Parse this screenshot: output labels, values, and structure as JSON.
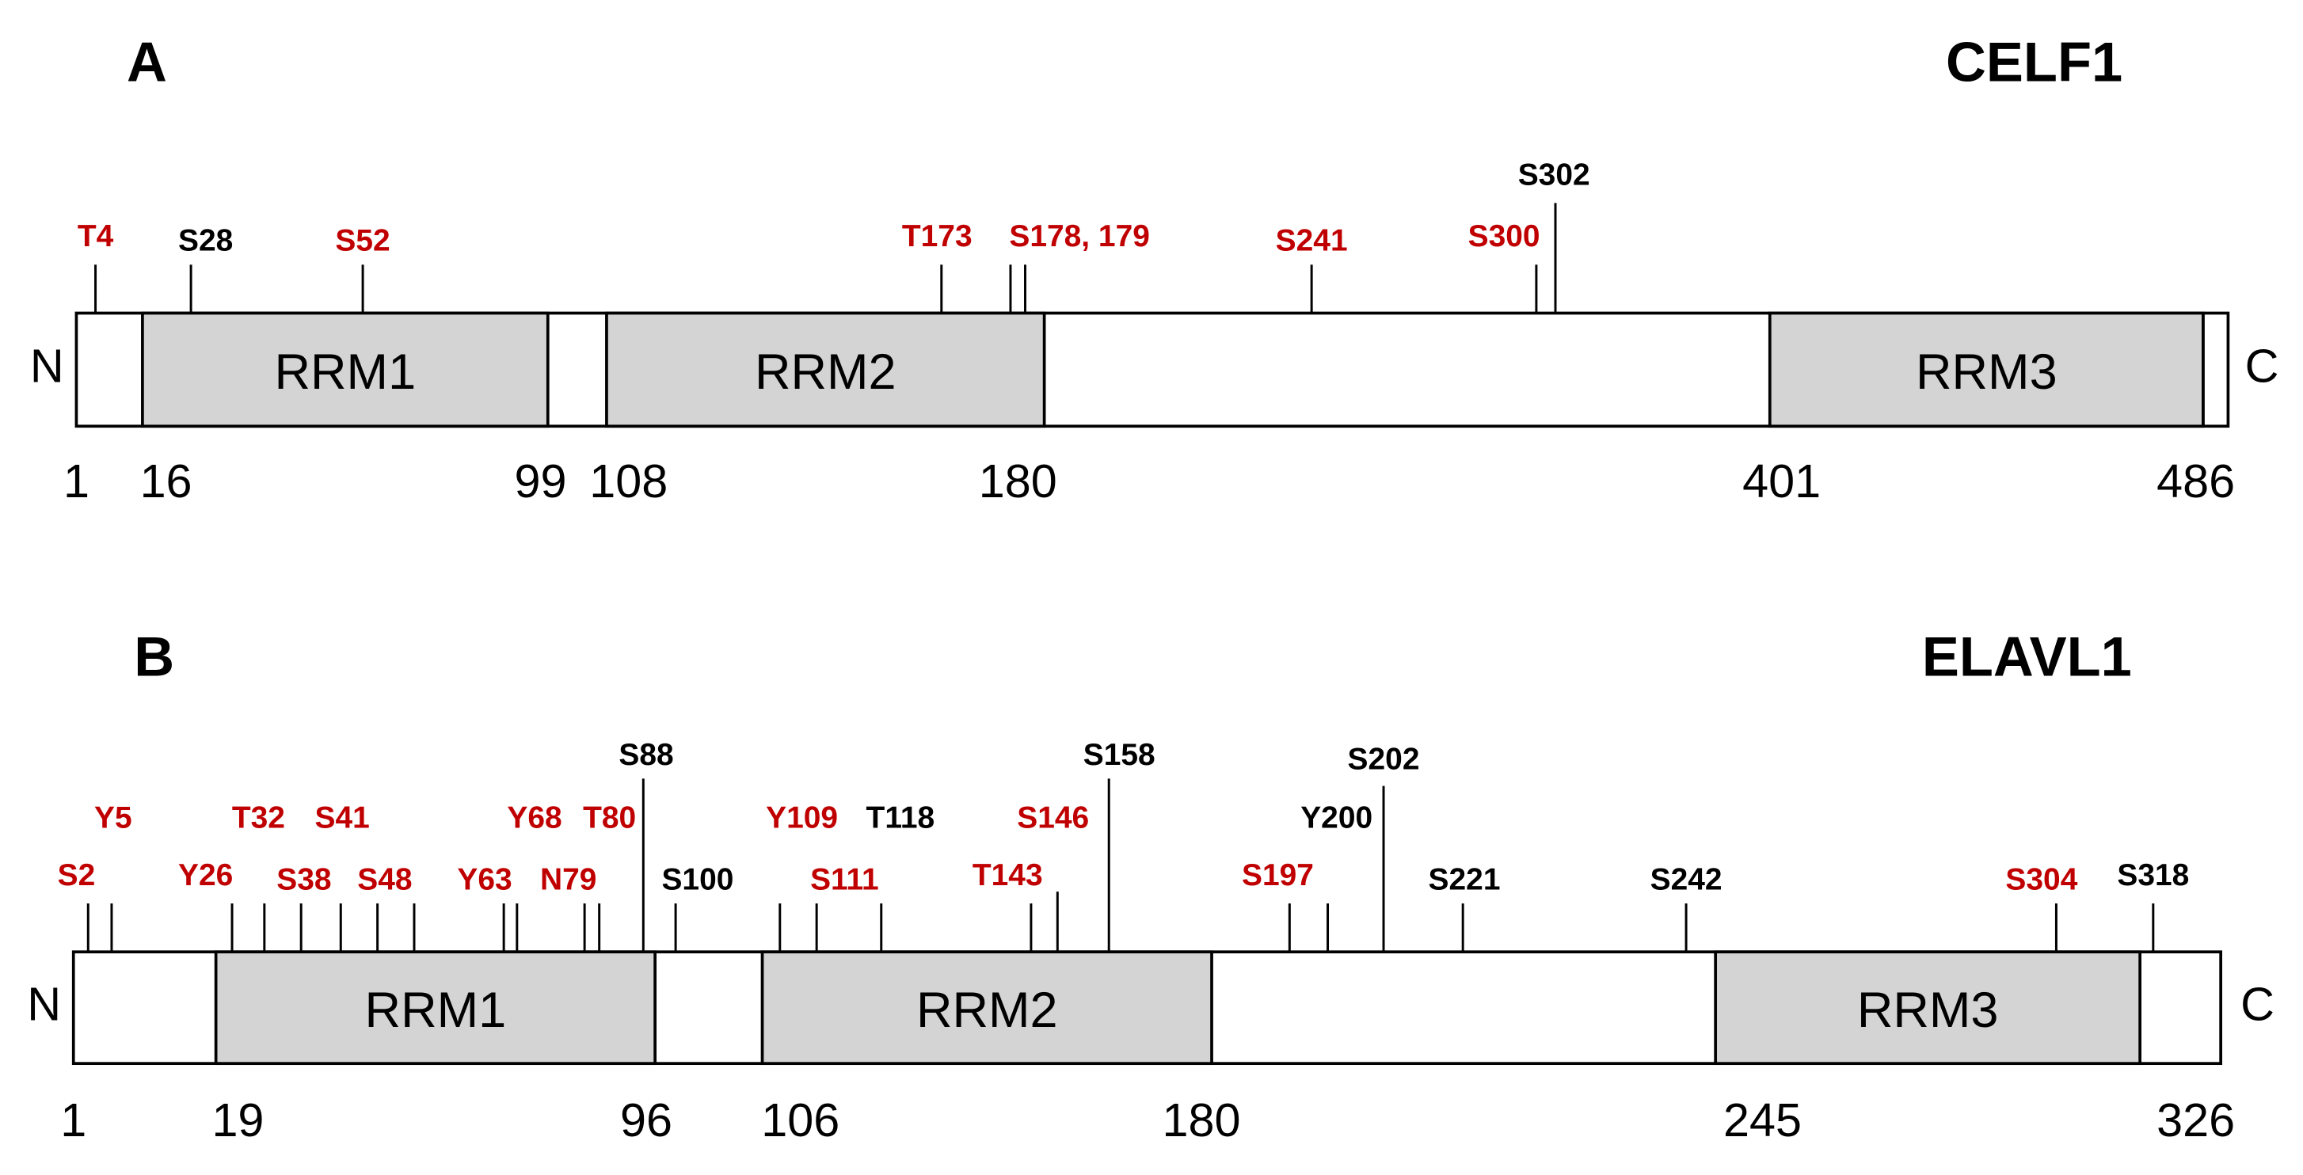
{
  "panels": [
    {
      "label": "A",
      "title": "CELF1",
      "n_label": "N",
      "c_label": "C",
      "domains": [
        "RRM1",
        "RRM2",
        "RRM3"
      ],
      "positions": [
        "1",
        "16",
        "99",
        "108",
        "180",
        "401",
        "486"
      ],
      "sites": [
        {
          "label": "T4",
          "color": "#c00000"
        },
        {
          "label": "S28",
          "color": "#000000"
        },
        {
          "label": "S52",
          "color": "#c00000"
        },
        {
          "label": "T173",
          "color": "#c00000"
        },
        {
          "label": "S178, 179",
          "color": "#c00000"
        },
        {
          "label": "S241",
          "color": "#c00000"
        },
        {
          "label": "S300",
          "color": "#c00000"
        },
        {
          "label": "S302",
          "color": "#000000"
        }
      ]
    },
    {
      "label": "B",
      "title": "ELAVL1",
      "n_label": "N",
      "c_label": "C",
      "domains": [
        "RRM1",
        "RRM2",
        "RRM3"
      ],
      "positions": [
        "1",
        "19",
        "96",
        "106",
        "180",
        "245",
        "326"
      ],
      "sites": [
        {
          "label": "S2",
          "color": "#c00000"
        },
        {
          "label": "Y5",
          "color": "#c00000"
        },
        {
          "label": "Y26",
          "color": "#c00000"
        },
        {
          "label": "T32",
          "color": "#c00000"
        },
        {
          "label": "S38",
          "color": "#c00000"
        },
        {
          "label": "S41",
          "color": "#c00000"
        },
        {
          "label": "S48",
          "color": "#c00000"
        },
        {
          "label": "Y63",
          "color": "#c00000"
        },
        {
          "label": "Y68",
          "color": "#c00000"
        },
        {
          "label": "N79",
          "color": "#c00000"
        },
        {
          "label": "T80",
          "color": "#c00000"
        },
        {
          "label": "S88",
          "color": "#000000"
        },
        {
          "label": "S100",
          "color": "#000000"
        },
        {
          "label": "Y109",
          "color": "#c00000"
        },
        {
          "label": "S111",
          "color": "#c00000"
        },
        {
          "label": "T118",
          "color": "#000000"
        },
        {
          "label": "T143",
          "color": "#c00000"
        },
        {
          "label": "S146",
          "color": "#c00000"
        },
        {
          "label": "S158",
          "color": "#000000"
        },
        {
          "label": "S197",
          "color": "#c00000"
        },
        {
          "label": "Y200",
          "color": "#000000"
        },
        {
          "label": "S202",
          "color": "#000000"
        },
        {
          "label": "S221",
          "color": "#000000"
        },
        {
          "label": "S242",
          "color": "#000000"
        },
        {
          "label": "S304",
          "color": "#c00000"
        },
        {
          "label": "S318",
          "color": "#000000"
        }
      ]
    }
  ]
}
